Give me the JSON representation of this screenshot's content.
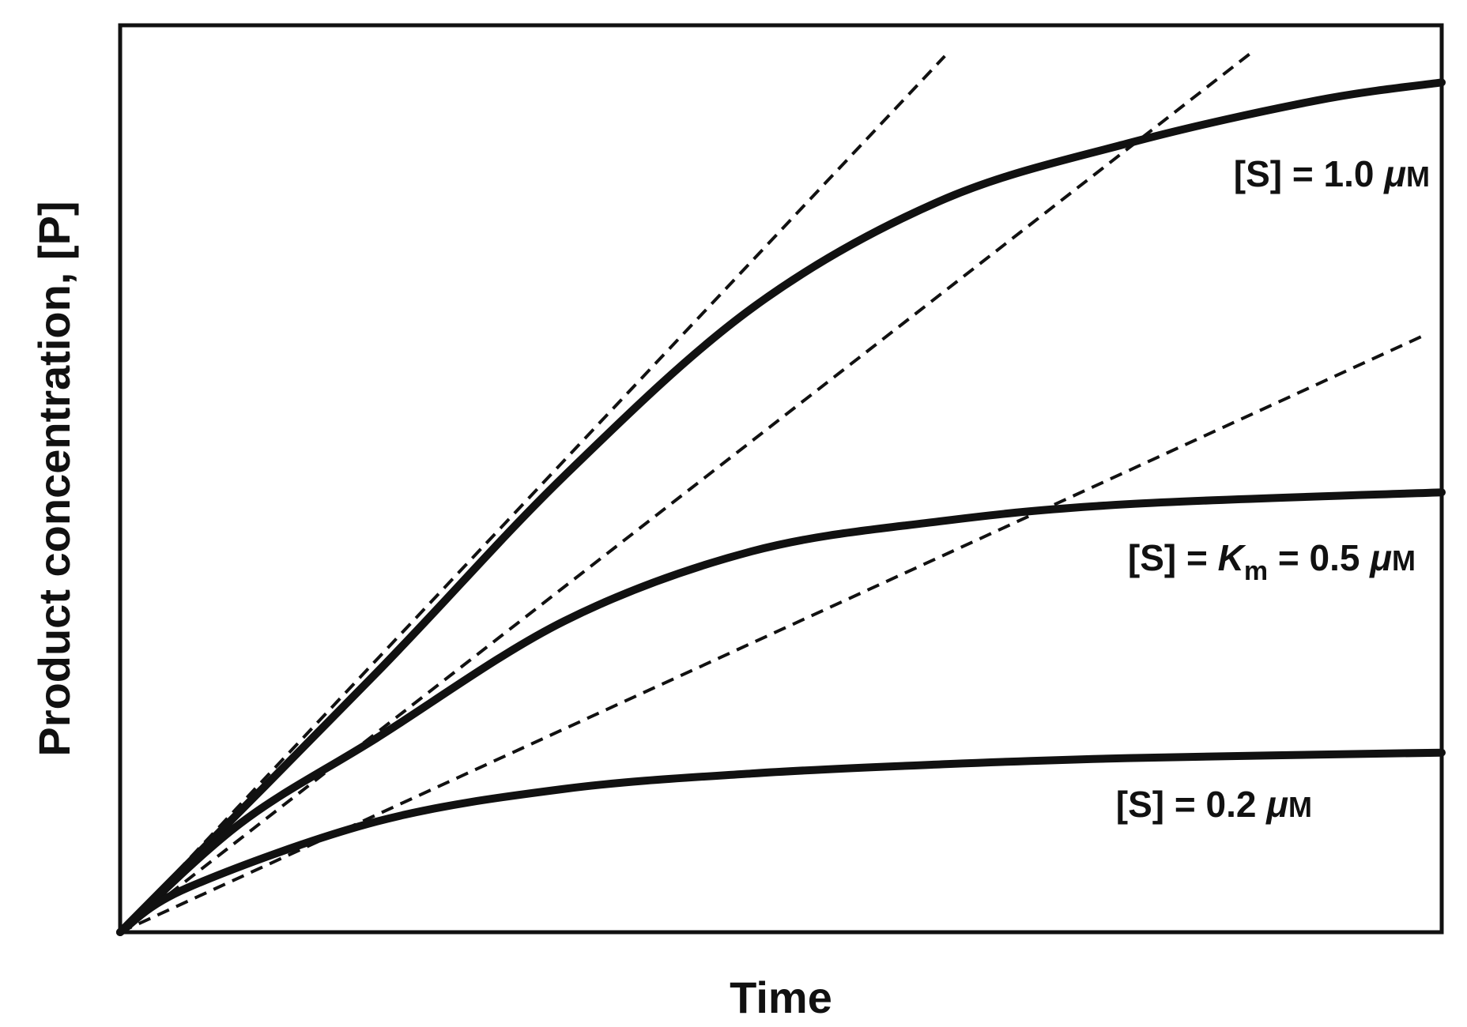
{
  "chart_data": {
    "type": "line",
    "title": "",
    "xlabel": "Time",
    "ylabel": "Product concentration, [P]",
    "xlim": [
      0,
      100
    ],
    "ylim": [
      0,
      100
    ],
    "grid": false,
    "ticks": false,
    "series": [
      {
        "name": "[S] = 1.0 μM",
        "style": "solid",
        "x": [
          0,
          19.4,
          33.6,
          47.8,
          62,
          76.3,
          90.5,
          100
        ],
        "y": [
          0,
          28.6,
          50.3,
          68.8,
          80.6,
          87,
          91.7,
          93.7
        ]
      },
      {
        "name": "[S] = Km = 0.5 μM",
        "style": "solid",
        "x": [
          0,
          9.1,
          19.4,
          33.6,
          47.8,
          62,
          76.3,
          100
        ],
        "y": [
          0,
          12,
          21.4,
          34.3,
          42,
          45.3,
          47.2,
          48.5
        ]
      },
      {
        "name": "[S] = 0.2 μM",
        "style": "solid",
        "x": [
          0,
          5.1,
          19.4,
          33.6,
          47.8,
          62,
          76.3,
          100
        ],
        "y": [
          0,
          4.9,
          12.2,
          15.8,
          17.5,
          18.5,
          19.2,
          19.8
        ]
      }
    ],
    "tangents": [
      {
        "style": "dashed",
        "x": [
          0,
          62.4
        ],
        "y": [
          0,
          96.6
        ]
      },
      {
        "style": "dashed",
        "x": [
          0,
          85.7
        ],
        "y": [
          0,
          97.1
        ]
      },
      {
        "style": "dashed",
        "x": [
          0,
          98.5
        ],
        "y": [
          0,
          65.7
        ]
      }
    ],
    "labels": {
      "s1": {
        "prefix": "[S] = 1.0 ",
        "mu": "μ",
        "unit": "M"
      },
      "s2": {
        "prefix": "[S] = ",
        "km": "K",
        "km_sub": "m",
        "mid": " = 0.5 ",
        "mu": "μ",
        "unit": "M"
      },
      "s3": {
        "prefix": "[S] = 0.2 ",
        "mu": "μ",
        "unit": "M"
      }
    },
    "line_color": "#111111"
  }
}
